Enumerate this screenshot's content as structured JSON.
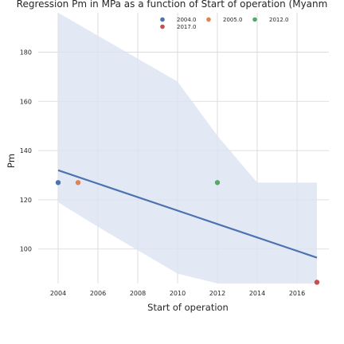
{
  "chart_data": {
    "type": "scatter",
    "title": "Regression Pm in MPa as a function of Start of operation (Myanm",
    "xlabel": "Start of operation",
    "ylabel": "Pm",
    "xlim": [
      2003,
      2017.6
    ],
    "ylim": [
      86,
      196
    ],
    "xticks": [
      2004,
      2006,
      2008,
      2010,
      2012,
      2014,
      2016
    ],
    "yticks": [
      100,
      120,
      140,
      160,
      180
    ],
    "grid": true,
    "legend_position": "top-right",
    "series": [
      {
        "name": "2004.0",
        "color": "#4c72b0",
        "points": [
          {
            "x": 2004,
            "y": 127
          }
        ]
      },
      {
        "name": "2005.0",
        "color": "#dd8452",
        "points": [
          {
            "x": 2005,
            "y": 127
          }
        ]
      },
      {
        "name": "2012.0",
        "color": "#55a868",
        "points": [
          {
            "x": 2012,
            "y": 127
          }
        ]
      },
      {
        "name": "2017.0",
        "color": "#c44e52",
        "points": [
          {
            "x": 2017,
            "y": 86.5
          }
        ]
      }
    ],
    "regression": {
      "color": "#4c72b0",
      "line": [
        {
          "x": 2004,
          "y": 132
        },
        {
          "x": 2017,
          "y": 96.5
        }
      ],
      "band_upper": [
        {
          "x": 2004,
          "y": 196
        },
        {
          "x": 2010,
          "y": 168
        },
        {
          "x": 2012,
          "y": 146
        },
        {
          "x": 2014,
          "y": 127
        },
        {
          "x": 2017,
          "y": 127
        }
      ],
      "band_lower": [
        {
          "x": 2004,
          "y": 119
        },
        {
          "x": 2006,
          "y": 109
        },
        {
          "x": 2010,
          "y": 90
        },
        {
          "x": 2012,
          "y": 86
        },
        {
          "x": 2017,
          "y": 86
        }
      ],
      "band_color": "#dbe3f2"
    }
  }
}
